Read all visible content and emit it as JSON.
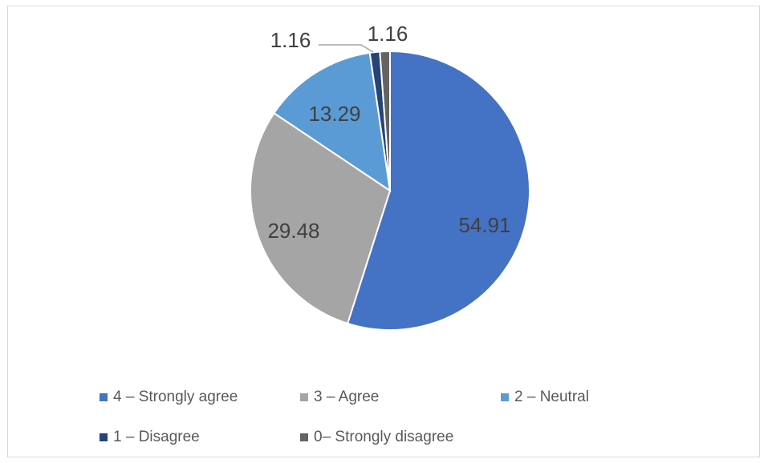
{
  "chart_data": {
    "type": "pie",
    "title": "",
    "categories": [
      "4 – Strongly agree",
      "3 – Agree",
      "2 – Neutral",
      "1 – Disagree",
      "0– Strongly disagree"
    ],
    "values": [
      54.91,
      29.48,
      13.29,
      1.16,
      1.16
    ],
    "data_labels": [
      "54.91",
      "29.48",
      "13.29",
      "1.16",
      "1.16"
    ],
    "colors": [
      "#4472c4",
      "#a5a5a5",
      "#5b9bd5",
      "#264478",
      "#636363"
    ],
    "start_angle_deg": 0,
    "direction": "clockwise",
    "legend": {
      "position": "bottom",
      "items": [
        {
          "label": "4 – Strongly agree",
          "color": "#4472c4"
        },
        {
          "label": "3 – Agree",
          "color": "#a5a5a5"
        },
        {
          "label": "2 – Neutral",
          "color": "#5b9bd5"
        },
        {
          "label": "1 – Disagree",
          "color": "#264478"
        },
        {
          "label": "0– Strongly disagree",
          "color": "#636363"
        }
      ]
    },
    "label_color": "#404040",
    "slice_border_color": "#ffffff"
  }
}
